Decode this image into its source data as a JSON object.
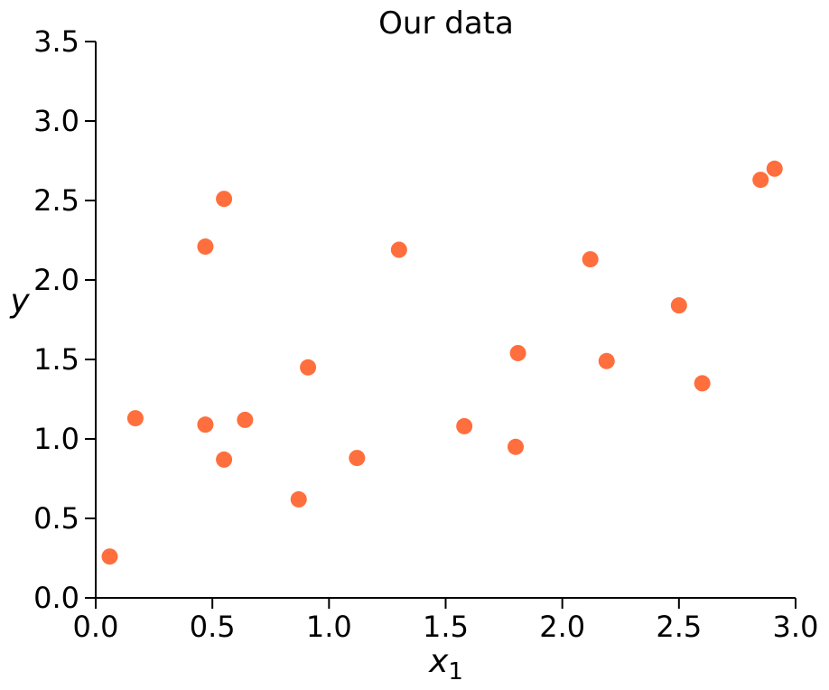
{
  "chart_data": {
    "type": "scatter",
    "title": "Our data",
    "xlabel": "x",
    "xlabel_subscript": "1",
    "ylabel": "y",
    "xlim": [
      0.0,
      3.0
    ],
    "ylim": [
      0.0,
      3.5
    ],
    "xticks": [
      "0.0",
      "0.5",
      "1.0",
      "1.5",
      "2.0",
      "2.5",
      "3.0"
    ],
    "yticks": [
      "0.0",
      "0.5",
      "1.0",
      "1.5",
      "2.0",
      "2.5",
      "3.0",
      "3.5"
    ],
    "grid": false,
    "marker_color": "#ff6633",
    "points": [
      {
        "x": 0.06,
        "y": 0.26
      },
      {
        "x": 0.17,
        "y": 1.13
      },
      {
        "x": 0.47,
        "y": 2.21
      },
      {
        "x": 0.47,
        "y": 1.09
      },
      {
        "x": 0.55,
        "y": 2.51
      },
      {
        "x": 0.55,
        "y": 0.87
      },
      {
        "x": 0.64,
        "y": 1.12
      },
      {
        "x": 0.87,
        "y": 0.62
      },
      {
        "x": 0.91,
        "y": 1.45
      },
      {
        "x": 1.12,
        "y": 0.88
      },
      {
        "x": 1.3,
        "y": 2.19
      },
      {
        "x": 1.58,
        "y": 1.08
      },
      {
        "x": 1.8,
        "y": 0.95
      },
      {
        "x": 1.81,
        "y": 1.54
      },
      {
        "x": 2.12,
        "y": 2.13
      },
      {
        "x": 2.19,
        "y": 1.49
      },
      {
        "x": 2.5,
        "y": 1.84
      },
      {
        "x": 2.6,
        "y": 1.35
      },
      {
        "x": 2.85,
        "y": 2.63
      },
      {
        "x": 2.91,
        "y": 2.7
      }
    ]
  }
}
